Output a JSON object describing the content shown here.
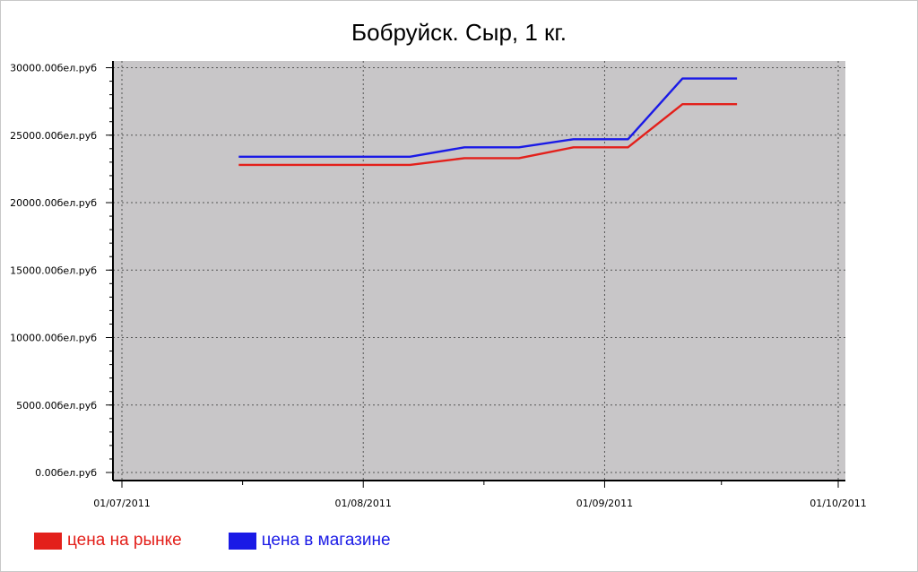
{
  "chart_data": {
    "type": "line",
    "title": "Бобруйск. Сыр, 1 кг.",
    "x_axis": {
      "ticks": [
        "2011-07-01",
        "2011-08-01",
        "2011-09-01",
        "2011-10-01"
      ],
      "tick_labels": [
        "01/07/2011",
        "01/08/2011",
        "01/09/2011",
        "01/10/2011"
      ],
      "range": [
        "2011-07-01",
        "2011-10-01"
      ]
    },
    "y_axis": {
      "ticks": [
        0,
        5000,
        10000,
        15000,
        20000,
        25000,
        30000
      ],
      "tick_labels": [
        "0.00бел.руб",
        "5000.00бел.руб",
        "10000.00бел.руб",
        "15000.00бел.руб",
        "20000.00бел.руб",
        "25000.00бел.руб",
        "30000.00бел.руб"
      ],
      "range": [
        0,
        30500
      ]
    },
    "grid": true,
    "legend_position": "bottom-left",
    "background_color": "#c8c6c8",
    "series": [
      {
        "name": "цена на рынке",
        "color": "#e3201b",
        "points": [
          {
            "x": "2011-07-16",
            "y": 22800
          },
          {
            "x": "2011-08-07",
            "y": 22800
          },
          {
            "x": "2011-08-14",
            "y": 23300
          },
          {
            "x": "2011-08-21",
            "y": 23300
          },
          {
            "x": "2011-08-28",
            "y": 24100
          },
          {
            "x": "2011-09-04",
            "y": 24100
          },
          {
            "x": "2011-09-11",
            "y": 27300
          },
          {
            "x": "2011-09-18",
            "y": 27300
          }
        ]
      },
      {
        "name": "цена в магазине",
        "color": "#1a1ae6",
        "points": [
          {
            "x": "2011-07-16",
            "y": 23400
          },
          {
            "x": "2011-08-07",
            "y": 23400
          },
          {
            "x": "2011-08-14",
            "y": 24100
          },
          {
            "x": "2011-08-21",
            "y": 24100
          },
          {
            "x": "2011-08-28",
            "y": 24700
          },
          {
            "x": "2011-09-04",
            "y": 24700
          },
          {
            "x": "2011-09-11",
            "y": 29200
          },
          {
            "x": "2011-09-18",
            "y": 29200
          }
        ]
      }
    ]
  }
}
